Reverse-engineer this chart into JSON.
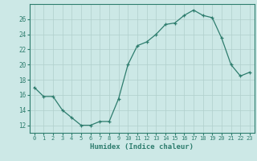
{
  "x": [
    0,
    1,
    2,
    3,
    4,
    5,
    6,
    7,
    8,
    9,
    10,
    11,
    12,
    13,
    14,
    15,
    16,
    17,
    18,
    19,
    20,
    21,
    22,
    23
  ],
  "y": [
    17,
    15.8,
    15.8,
    14,
    13,
    12,
    12,
    12.5,
    12.5,
    15.5,
    20,
    22.5,
    23,
    24,
    25.3,
    25.5,
    26.5,
    27.2,
    26.5,
    26.2,
    23.5,
    20,
    18.5,
    19
  ],
  "xlabel": "Humidex (Indice chaleur)",
  "line_color": "#2e7d6e",
  "marker_color": "#2e7d6e",
  "bg_color": "#cce8e6",
  "grid_color": "#b0cfcc",
  "axis_color": "#2e7d6e",
  "tick_color": "#2e7d6e",
  "xlabel_color": "#2e7d6e",
  "ylim": [
    11,
    28
  ],
  "xlim": [
    -0.5,
    23.5
  ],
  "yticks": [
    12,
    14,
    16,
    18,
    20,
    22,
    24,
    26
  ],
  "xticks": [
    0,
    1,
    2,
    3,
    4,
    5,
    6,
    7,
    8,
    9,
    10,
    11,
    12,
    13,
    14,
    15,
    16,
    17,
    18,
    19,
    20,
    21,
    22,
    23
  ]
}
